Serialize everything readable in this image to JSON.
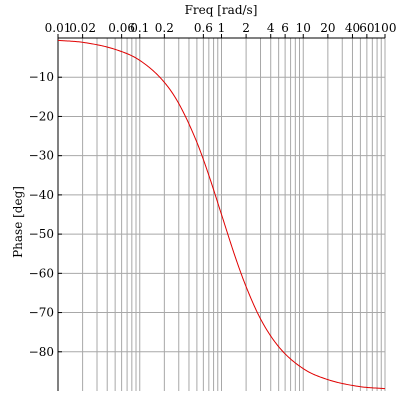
{
  "chart_data": {
    "type": "line",
    "xlabel": "Freq [rad/s]",
    "ylabel": "Phase [deg]",
    "x_scale": "log",
    "x_axis_position": "top",
    "xlim": [
      0.01,
      100
    ],
    "ylim": [
      -90,
      0
    ],
    "grid": true,
    "x_tick_labels": [
      "0.01",
      "0.02",
      "0.06",
      "0.1",
      "0.2",
      "0.6",
      "1",
      "2",
      "4",
      "6",
      "10",
      "20",
      "40",
      "60",
      "100"
    ],
    "y_tick_labels": [
      "-10",
      "-20",
      "-30",
      "-40",
      "-50",
      "-60",
      "-70",
      "-80"
    ],
    "series": [
      {
        "color": "#e00000",
        "x": [
          0.01,
          0.02,
          0.05,
          0.1,
          0.2,
          0.3,
          0.5,
          0.7,
          1,
          1.5,
          2,
          3,
          5,
          10,
          20,
          50,
          100
        ],
        "y": [
          -0.6,
          -1.1,
          -2.9,
          -5.7,
          -11.3,
          -16.7,
          -26.6,
          -35.0,
          -45.0,
          -56.3,
          -63.4,
          -71.6,
          -78.7,
          -84.3,
          -87.1,
          -88.9,
          -89.4
        ]
      }
    ]
  }
}
